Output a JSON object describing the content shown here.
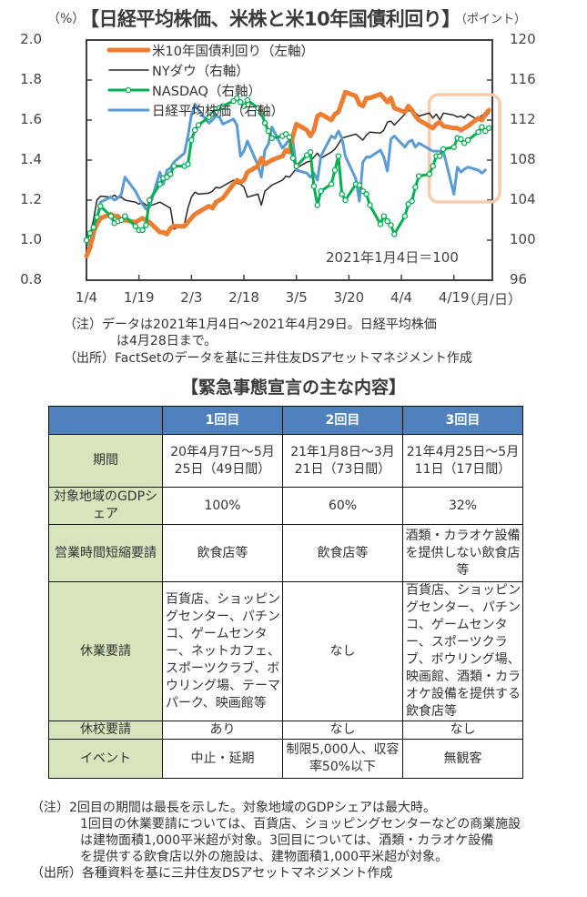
{
  "chart": {
    "title": "【日経平均株価、米株と米10年国債利回り】",
    "unit_left": "（%）",
    "unit_right": "（ポイント）",
    "xunit": "（月/日）",
    "annotation": "2021年1月4日＝100",
    "notes": [
      "（注）データは2021年1月4日～2021年4月29日。日経平均株価",
      "は4月28日まで。",
      "（出所）FactSetのデータを基に三井住友DSアセットマネジメント作成"
    ]
  },
  "chart_data": {
    "type": "line",
    "title": "【日経平均株価、米株と米10年国債利回り】",
    "xlabel": "（月/日）",
    "ylabel_left": "（%）",
    "ylabel_right": "（ポイント）",
    "x_tick_labels": [
      "1/4",
      "1/19",
      "2/3",
      "2/18",
      "3/5",
      "3/20",
      "4/4",
      "4/19"
    ],
    "x_tick_days": [
      0,
      15,
      30,
      45,
      60,
      75,
      90,
      105
    ],
    "x_range_days": [
      0,
      116
    ],
    "ylim_left": [
      0.8,
      2.0
    ],
    "yticks_left": [
      "2.0",
      "1.8",
      "1.6",
      "1.4",
      "1.2",
      "1.0",
      "0.8"
    ],
    "ylim_right": [
      96,
      120
    ],
    "yticks_right": [
      "120",
      "116",
      "112",
      "108",
      "104",
      "100",
      "96"
    ],
    "legend_position": "top-left",
    "highlight_range_days": [
      99,
      116
    ],
    "series": [
      {
        "name": "米10年国債利回り（左軸）",
        "axis": "left",
        "color": "#ed7d31",
        "x": [
          0,
          1,
          2,
          3,
          4,
          7,
          8,
          9,
          10,
          11,
          14,
          15,
          16,
          17,
          18,
          21,
          22,
          23,
          24,
          25,
          28,
          29,
          30,
          31,
          32,
          35,
          36,
          37,
          38,
          39,
          42,
          43,
          44,
          45,
          46,
          49,
          50,
          51,
          52,
          53,
          56,
          57,
          58,
          59,
          60,
          63,
          64,
          65,
          66,
          67,
          70,
          71,
          72,
          73,
          74,
          77,
          78,
          79,
          80,
          81,
          84,
          85,
          86,
          87,
          88,
          91,
          92,
          93,
          94,
          95,
          98,
          99,
          100,
          101,
          102,
          105,
          106,
          107,
          108,
          109,
          112,
          113,
          114,
          115
        ],
        "y": [
          0.92,
          0.96,
          1.04,
          1.08,
          1.11,
          1.13,
          1.12,
          1.12,
          1.1,
          1.1,
          1.09,
          1.1,
          1.11,
          1.1,
          1.09,
          1.04,
          1.04,
          1.03,
          1.06,
          1.07,
          1.07,
          1.09,
          1.11,
          1.13,
          1.14,
          1.17,
          1.16,
          1.19,
          1.2,
          1.21,
          1.28,
          1.3,
          1.29,
          1.3,
          1.34,
          1.37,
          1.41,
          1.38,
          1.39,
          1.4,
          1.42,
          1.45,
          1.44,
          1.52,
          1.58,
          1.55,
          1.52,
          1.55,
          1.62,
          1.63,
          1.6,
          1.63,
          1.64,
          1.69,
          1.74,
          1.72,
          1.68,
          1.67,
          1.71,
          1.71,
          1.73,
          1.71,
          1.69,
          1.71,
          1.66,
          1.64,
          1.67,
          1.65,
          1.62,
          1.6,
          1.57,
          1.56,
          1.58,
          1.59,
          1.57,
          1.56,
          1.56,
          1.55,
          1.56,
          1.57,
          1.61,
          1.6,
          1.63,
          1.65
        ]
      },
      {
        "name": "NYダウ（右軸）",
        "axis": "right",
        "color": "#262626",
        "x": [
          0,
          1,
          2,
          3,
          4,
          7,
          8,
          9,
          10,
          11,
          14,
          15,
          16,
          17,
          18,
          21,
          22,
          23,
          24,
          25,
          28,
          29,
          30,
          31,
          32,
          35,
          36,
          37,
          38,
          39,
          42,
          43,
          44,
          45,
          46,
          49,
          50,
          51,
          52,
          53,
          56,
          57,
          58,
          59,
          60,
          63,
          64,
          65,
          66,
          67,
          70,
          71,
          72,
          73,
          74,
          77,
          78,
          79,
          80,
          81,
          84,
          85,
          86,
          87,
          88,
          91,
          92,
          93,
          94,
          95,
          98,
          99,
          100,
          101,
          102,
          105,
          106,
          107,
          108,
          109,
          112,
          113,
          114,
          115
        ],
        "y": [
          100,
          100.5,
          102,
          104,
          104.4,
          104.3,
          104.5,
          104.2,
          104.3,
          104.0,
          103.8,
          103.6,
          103.8,
          103.5,
          103.4,
          103.8,
          103.6,
          103.4,
          103.2,
          101.1,
          101.6,
          103.2,
          104.3,
          104.8,
          104.6,
          104.7,
          104.9,
          105.3,
          105.2,
          105.4,
          106.0,
          105.7,
          105.6,
          105.3,
          104.3,
          104.6,
          103.5,
          104.9,
          105.2,
          105.5,
          106.0,
          106.4,
          106.3,
          106.7,
          107.2,
          107.8,
          107.9,
          108.3,
          108.7,
          108.2,
          108.8,
          109.1,
          109.6,
          110.2,
          110.3,
          110.6,
          110.3,
          110.0,
          110.5,
          110.8,
          110.7,
          111.0,
          111.8,
          111.9,
          111.5,
          112.6,
          113.0,
          112.8,
          112.7,
          112.4,
          112.7,
          112.2,
          112.6,
          112.0,
          112.7,
          112.5,
          112.3,
          112.4,
          112.2,
          112.6,
          112.0,
          112.5,
          112.3,
          112.7
        ]
      },
      {
        "name": "NASDAQ（右軸）",
        "axis": "right",
        "color": "#00b050",
        "x": [
          0,
          1,
          2,
          3,
          4,
          7,
          8,
          9,
          10,
          11,
          14,
          15,
          16,
          17,
          18,
          21,
          22,
          23,
          24,
          25,
          28,
          29,
          30,
          31,
          32,
          35,
          36,
          37,
          38,
          39,
          42,
          43,
          44,
          45,
          46,
          49,
          50,
          51,
          52,
          53,
          56,
          57,
          58,
          59,
          60,
          63,
          64,
          65,
          66,
          67,
          70,
          71,
          72,
          73,
          74,
          77,
          78,
          79,
          80,
          81,
          84,
          85,
          86,
          87,
          88,
          91,
          92,
          93,
          94,
          95,
          98,
          99,
          100,
          101,
          102,
          105,
          106,
          107,
          108,
          109,
          112,
          113,
          114,
          115
        ],
        "y": [
          100,
          100.7,
          101.3,
          102.3,
          103.4,
          102.4,
          101.7,
          101.9,
          102.0,
          102.4,
          101.4,
          101.0,
          101.0,
          101.5,
          104.0,
          105.6,
          106.2,
          106.3,
          106.6,
          107.4,
          107.4,
          107.6,
          110.0,
          111.0,
          111.5,
          112.3,
          112.6,
          112.8,
          113.2,
          113.4,
          113.9,
          114.2,
          113.8,
          113.4,
          114.0,
          113.2,
          112.7,
          111.7,
          110.9,
          110.2,
          110.4,
          110.6,
          110.3,
          108.2,
          107.4,
          108.5,
          108.8,
          105.4,
          103.5,
          104.9,
          105.6,
          107.0,
          108.4,
          104.6,
          104.0,
          105.6,
          105.5,
          104.9,
          104.6,
          103.5,
          101.6,
          102.4,
          101.9,
          101.5,
          100.6,
          102.4,
          103.6,
          103.9,
          105.3,
          106.4,
          106.6,
          107.4,
          108.4,
          108.4,
          109.1,
          109.3,
          110.2,
          110.1,
          109.7,
          110.0,
          110.8,
          111.3,
          110.9,
          111.2
        ]
      },
      {
        "name": "日経平均株価（右軸）",
        "axis": "right",
        "color": "#5b9bd5",
        "x": [
          0,
          1,
          2,
          3,
          4,
          7,
          8,
          9,
          10,
          11,
          14,
          15,
          16,
          17,
          18,
          21,
          22,
          23,
          24,
          25,
          28,
          29,
          30,
          31,
          32,
          35,
          36,
          37,
          38,
          39,
          42,
          43,
          44,
          45,
          46,
          49,
          50,
          51,
          52,
          53,
          56,
          57,
          58,
          59,
          60,
          63,
          64,
          65,
          66,
          67,
          70,
          71,
          72,
          73,
          74,
          77,
          78,
          79,
          80,
          81,
          84,
          85,
          86,
          87,
          88,
          91,
          92,
          93,
          94,
          95,
          98,
          99,
          100,
          101,
          102,
          105,
          106,
          107,
          108,
          109,
          112,
          113,
          114
        ],
        "y": [
          100,
          99.3,
          100.2,
          102.0,
          103.8,
          104.3,
          104.0,
          104.2,
          104.6,
          106.3,
          104.9,
          104.2,
          103.6,
          103.1,
          103.3,
          106.8,
          105.6,
          107.0,
          107.2,
          107.8,
          108.7,
          110.4,
          112.5,
          113.6,
          113.0,
          111.7,
          112.0,
          112.4,
          112.3,
          111.6,
          112.1,
          111.5,
          108.4,
          108.9,
          109.9,
          107.5,
          106.3,
          109.0,
          109.6,
          111.3,
          109.2,
          109.6,
          110.1,
          110.0,
          107.0,
          106.7,
          106.3,
          106.7,
          106.0,
          108.4,
          110.4,
          110.2,
          110.9,
          110.2,
          108.4,
          106.1,
          103.9,
          107.8,
          108.3,
          108.3,
          109.0,
          108.3,
          106.9,
          110.1,
          110.4,
          109.3,
          109.8,
          110.0,
          109.3,
          109.7,
          109.1,
          108.9,
          108.9,
          108.9,
          108.9,
          104.6,
          107.3,
          106.8,
          107.1,
          107.3,
          107.0,
          106.7,
          107.0
        ]
      }
    ]
  },
  "table": {
    "title": "【緊急事態宣言の主な内容】",
    "header": [
      "",
      "1回目",
      "2回目",
      "3回目"
    ],
    "rows": [
      {
        "label": "期間",
        "cells": [
          "20年4月7日～5月25日（49日間）",
          "21年1月8日～3月21日（73日間）",
          "21年4月25日～5月11日（17日間）"
        ]
      },
      {
        "label": "対象地域のGDPシェア",
        "cells": [
          "100%",
          "60%",
          "32%"
        ]
      },
      {
        "label": "営業時間短縮要請",
        "cells": [
          "飲食店等",
          "飲食店等",
          "酒類・カラオケ設備を提供しない飲食店等"
        ]
      },
      {
        "label": "休業要請",
        "cells": [
          "百貨店、ショッピングセンター、パチンコ、ゲームセンター、ネットカフェ、スポーツクラブ、ボウリング場、テーマパーク、映画館等",
          "なし",
          "百貨店、ショッピングセンター、パチンコ、ゲームセンター、スポーツクラブ、ボウリング場、映画館、酒類・カラオケ設備を提供する飲食店等"
        ]
      },
      {
        "label": "休校要請",
        "cells": [
          "あり",
          "なし",
          "なし"
        ]
      },
      {
        "label": "イベント",
        "cells": [
          "中止・延期",
          "制限5,000人、収容率50%以下",
          "無観客"
        ]
      }
    ],
    "notes": [
      "（注）2回目の期間は最長を示した。対象地域のGDPシェアは最大時。",
      "1回目の休業要請については、百貨店、ショッピングセンターなどの商業施設",
      "は建物面積1,000平米超が対象。3回目については、酒類・カラオケ設備",
      "を提供する飲食店以外の施設は、建物面積1,000平米超が対象。",
      "（出所）各種資料を基に三井住友DSアセットマネジメント作成"
    ]
  },
  "colors": {
    "header_bg": "#4f81bd",
    "rowhead_bg": "#d7e4bc",
    "highlight_box": "#f8cbad"
  }
}
